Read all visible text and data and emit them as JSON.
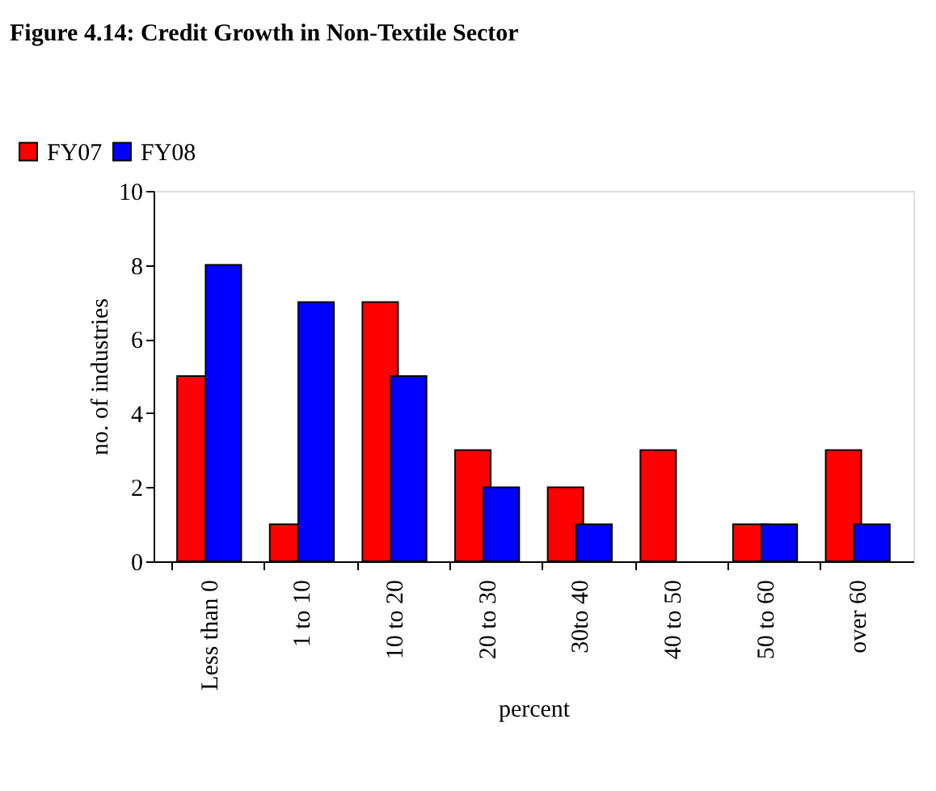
{
  "chart_data": {
    "type": "bar",
    "title": "Figure 4.14: Credit Growth in Non-Textile Sector",
    "xlabel": "percent",
    "ylabel": "no. of industries",
    "categories": [
      "Less than 0",
      "1 to 10",
      "10 to 20",
      "20 to 30",
      "30to 40",
      "40 to 50",
      "50 to 60",
      "over 60"
    ],
    "series": [
      {
        "name": "FY07",
        "color": "#ff0000",
        "values": [
          5,
          1,
          7,
          3,
          2,
          3,
          1,
          3
        ]
      },
      {
        "name": "FY08",
        "color": "#0000ff",
        "values": [
          8,
          7,
          5,
          2,
          1,
          0,
          1,
          1
        ]
      }
    ],
    "ylim": [
      0,
      10
    ],
    "yticks": [
      0,
      2,
      4,
      6,
      8,
      10
    ],
    "grid": false,
    "legend": "top left"
  }
}
